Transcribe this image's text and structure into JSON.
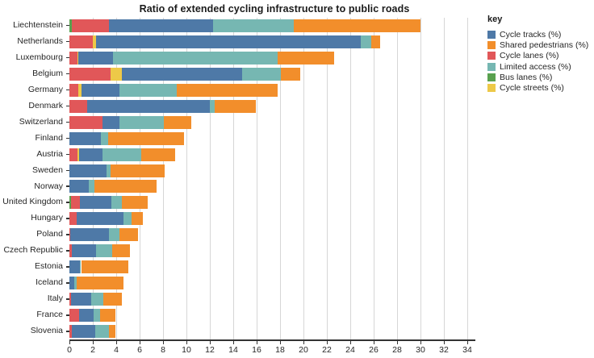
{
  "chart_data": {
    "type": "bar",
    "orientation": "horizontal-stacked",
    "title": "Ratio of extended cycling infrastructure to public roads",
    "xlabel": "",
    "ylabel": "",
    "xlim": [
      0,
      34.7
    ],
    "x_ticks": [
      0,
      2,
      4,
      6,
      8,
      10,
      12,
      14,
      16,
      18,
      20,
      22,
      24,
      26,
      28,
      30,
      32,
      34
    ],
    "grid": "vertical-major",
    "categories": [
      "Liechtenstein",
      "Netherlands",
      "Luxembourg",
      "Belgium",
      "Germany",
      "Denmark",
      "Switzerland",
      "Finland",
      "Austria",
      "Sweden",
      "Norway",
      "United Kingdom",
      "Hungary",
      "Poland",
      "Czech Republic",
      "Estonia",
      "Iceland",
      "Italy",
      "France",
      "Slovenia"
    ],
    "series": [
      {
        "name": "Bus lanes (%)",
        "color": "#59a14f",
        "values": [
          0.2,
          0,
          0,
          0,
          0,
          0,
          0,
          0,
          0,
          0,
          0,
          0.15,
          0,
          0,
          0,
          0,
          0,
          0,
          0,
          0
        ]
      },
      {
        "name": "Cycle lanes (%)",
        "color": "#e15759",
        "values": [
          3.2,
          2.0,
          0.66,
          3.5,
          0.75,
          1.55,
          2.8,
          0,
          0.7,
          0,
          0,
          0.76,
          0.6,
          0.1,
          0.2,
          0,
          0,
          0.15,
          0.85,
          0.2
        ]
      },
      {
        "name": "Cycle streets (%)",
        "color": "#edc948",
        "values": [
          0,
          0.3,
          0.13,
          0.95,
          0.26,
          0,
          0,
          0,
          0.13,
          0,
          0,
          0,
          0,
          0,
          0,
          0,
          0,
          0,
          0,
          0
        ]
      },
      {
        "name": "Cycle tracks (%)",
        "color": "#4e79a7",
        "values": [
          8.9,
          22.6,
          2.9,
          10.3,
          3.3,
          10.45,
          1.5,
          2.7,
          2.0,
          3.2,
          1.65,
          2.7,
          4.0,
          3.3,
          2.05,
          0.9,
          0.4,
          1.7,
          1.25,
          2.0
        ]
      },
      {
        "name": "Limited access (%)",
        "color": "#76b7b2",
        "values": [
          6.9,
          0.9,
          14.1,
          3.3,
          4.85,
          0.4,
          3.75,
          0.6,
          3.3,
          0.3,
          0.5,
          0.9,
          0.7,
          0.85,
          1.4,
          0.1,
          0.2,
          1.05,
          0.5,
          1.2
        ]
      },
      {
        "name": "Shared pedestrians (%)",
        "color": "#f28e2b",
        "values": [
          10.8,
          0.75,
          4.8,
          1.7,
          8.6,
          3.5,
          2.35,
          6.5,
          2.9,
          4.65,
          5.3,
          2.2,
          1.0,
          1.6,
          1.55,
          4.05,
          4.0,
          1.6,
          1.35,
          0.5
        ]
      }
    ],
    "totals": [
      30.0,
      26.55,
      22.59,
      19.75,
      17.76,
      15.9,
      10.4,
      9.8,
      9.03,
      8.15,
      7.45,
      6.71,
      6.3,
      5.85,
      5.2,
      5.05,
      4.6,
      4.5,
      3.95,
      3.9
    ],
    "legend": {
      "title": "key",
      "position": "top-right",
      "entries": [
        {
          "label": "Cycle tracks (%)",
          "color": "#4e79a7"
        },
        {
          "label": "Shared pedestrians (%)",
          "color": "#f28e2b"
        },
        {
          "label": "Cycle lanes (%)",
          "color": "#e15759"
        },
        {
          "label": "Limited access (%)",
          "color": "#76b7b2"
        },
        {
          "label": "Bus lanes (%)",
          "color": "#59a14f"
        },
        {
          "label": "Cycle streets (%)",
          "color": "#edc948"
        }
      ]
    }
  }
}
